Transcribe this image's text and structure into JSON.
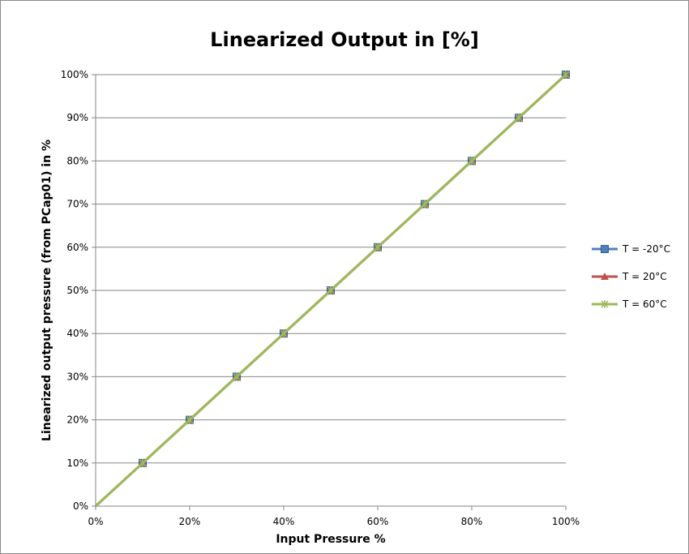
{
  "chart_data": {
    "type": "line",
    "title": "Linearized Output in [%]",
    "xlabel": "Input Pressure %",
    "ylabel": "Linearized output pressure (from PCap01) in %",
    "x_ticks": [
      "0%",
      "20%",
      "40%",
      "60%",
      "80%",
      "100%"
    ],
    "y_ticks": [
      "0%",
      "10%",
      "20%",
      "30%",
      "40%",
      "50%",
      "60%",
      "70%",
      "80%",
      "90%",
      "100%"
    ],
    "xlim": [
      0,
      100
    ],
    "ylim": [
      0,
      100
    ],
    "grid": "horizontal",
    "legend_position": "right",
    "x": [
      0,
      10,
      20,
      30,
      40,
      50,
      60,
      70,
      80,
      90,
      100
    ],
    "series": [
      {
        "name": "T = -20°C",
        "values": [
          0,
          10,
          20,
          30,
          40,
          50,
          60,
          70,
          80,
          90,
          100
        ],
        "color": "#4f81bd",
        "marker": "square"
      },
      {
        "name": "T = 20°C",
        "values": [
          0,
          10,
          20,
          30,
          40,
          50,
          60,
          70,
          80,
          90,
          100
        ],
        "color": "#c0504d",
        "marker": "triangle"
      },
      {
        "name": "T = 60°C",
        "values": [
          0,
          10,
          20,
          30,
          40,
          50,
          60,
          70,
          80,
          90,
          100
        ],
        "color": "#9bbb59",
        "marker": "star"
      }
    ]
  }
}
